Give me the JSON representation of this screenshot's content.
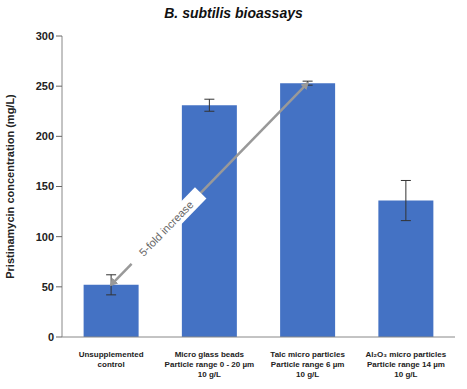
{
  "chart_data": {
    "type": "bar",
    "title": "B. subtilis bioassays",
    "y_label": "Pristinamycin concentration (mg/L)",
    "categories": [
      "Unsupplemented\ncontrol",
      "Micro glass beads\nParticle range 0 - 20 µm\n10 g/L",
      "Talc micro particles\nParticle range 6 µm\n10 g/L",
      "Al₂O₃ micro particles\nParticle range 14 µm\n10 g/L"
    ],
    "values": [
      52,
      231,
      253,
      136
    ],
    "errors": [
      10,
      6,
      2,
      20
    ],
    "color": "#4472c4",
    "ylim": [
      0,
      300
    ],
    "yticks": [
      0,
      50,
      100,
      150,
      200,
      250,
      300
    ],
    "grid": false,
    "annotation": "5-fold increase"
  }
}
